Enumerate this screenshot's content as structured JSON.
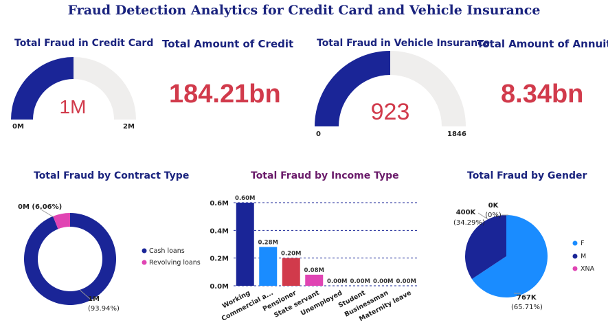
{
  "page": {
    "title": "Fraud Detection Analytics for Credit Card and Vehicle Insurance"
  },
  "colors": {
    "navy": "#1a2597",
    "gray": "#efeeed",
    "red": "#d13a4b",
    "blue": "#1a8cff",
    "pink": "#e044b3",
    "title": "#1a237e"
  },
  "kpi": {
    "credit_card_title": "Total Fraud in Credit Card",
    "credit_amount_title": "Total Amount of Credit",
    "credit_amount_value": "184.21bn",
    "vehicle_title": "Total Fraud in Vehicle Insurance",
    "annuity_title": "Total Amount of Annuity",
    "annuity_value": "8.34bn"
  },
  "chart_data": [
    {
      "type": "gauge",
      "title": "Total Fraud in Credit Card",
      "value": 1,
      "min": 0,
      "max": 2,
      "value_label": "1M",
      "min_label": "0M",
      "max_label": "2M"
    },
    {
      "type": "gauge",
      "title": "Total Fraud in Vehicle Insurance",
      "value": 923,
      "min": 0,
      "max": 1846,
      "value_label": "923",
      "min_label": "0",
      "max_label": "1846"
    },
    {
      "type": "pie",
      "title": "Total Fraud by Contract Type",
      "donut": true,
      "categories": [
        "Cash loans",
        "Revolving loans"
      ],
      "values": [
        0.9394,
        0.0606
      ],
      "labels": [
        [
          "1M",
          "(93.94%)"
        ],
        [
          "0M (6.06%)"
        ]
      ],
      "colors": [
        "#1a2597",
        "#e044b3"
      ],
      "legend": "right"
    },
    {
      "type": "bar",
      "title": "Total Fraud by Income Type",
      "categories": [
        "Working",
        "Commercial a...",
        "Pensioner",
        "State servant",
        "Unemployed",
        "Student",
        "Businessman",
        "Maternity leave"
      ],
      "values": [
        0.6,
        0.28,
        0.2,
        0.08,
        0.0,
        0.0,
        0.0,
        0.0
      ],
      "data_labels": [
        "0.60M",
        "0.28M",
        "0.20M",
        "0.08M",
        "0.00M",
        "0.00M",
        "0.00M",
        "0.00M"
      ],
      "colors": [
        "#1a2597",
        "#1a8cff",
        "#d13a4b",
        "#e044b3",
        "#1a2597",
        "#1a2597",
        "#1a2597",
        "#1a2597"
      ],
      "ylim": [
        0,
        0.6
      ],
      "yticks": [
        "0.0M",
        "0.2M",
        "0.4M",
        "0.6M"
      ],
      "grid": true
    },
    {
      "type": "pie",
      "title": "Total Fraud by Gender",
      "categories": [
        "F",
        "M",
        "XNA"
      ],
      "values": [
        0.6571,
        0.3429,
        0.0
      ],
      "labels": [
        [
          "767K",
          "(65.71%)"
        ],
        [
          "400K",
          "(34.29%)"
        ],
        [
          "0K",
          "(0%)"
        ]
      ],
      "colors": [
        "#1a8cff",
        "#1a2597",
        "#e044b3"
      ],
      "legend": "right"
    }
  ]
}
